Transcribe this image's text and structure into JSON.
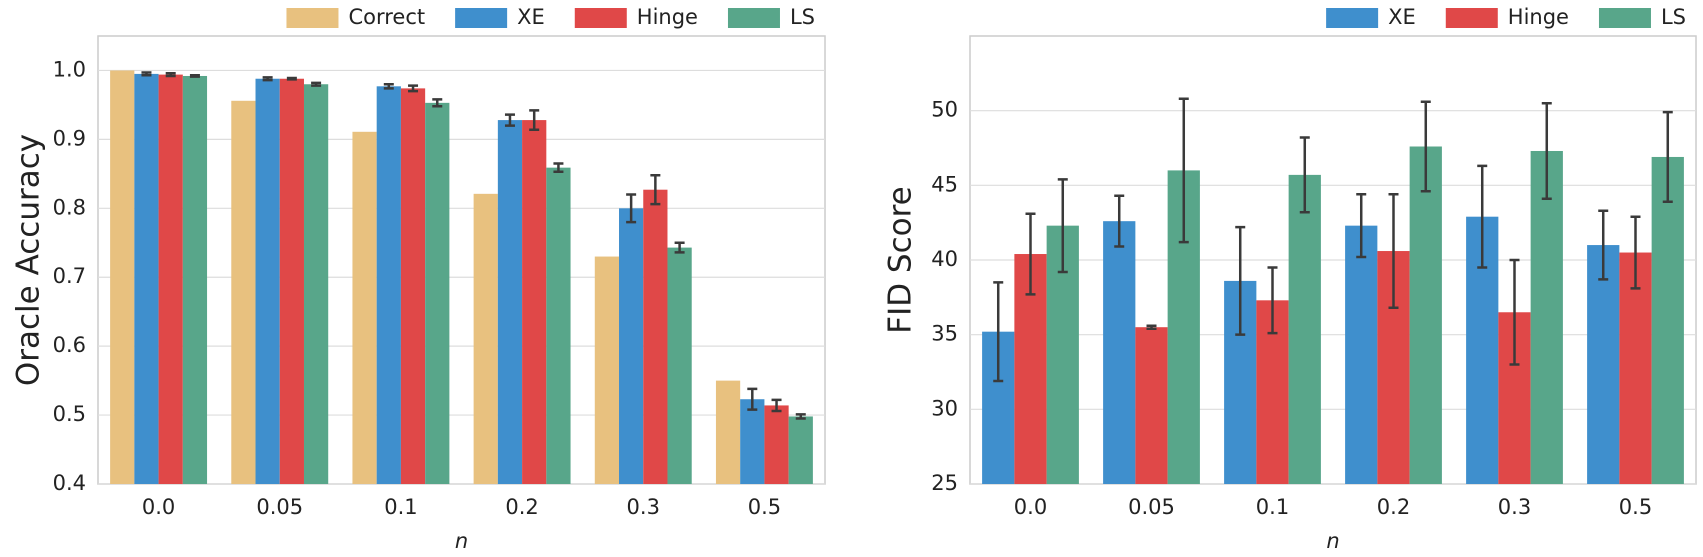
{
  "chart_data": [
    {
      "type": "bar",
      "ylabel": "Oracle Accuracy",
      "xlabel": "n",
      "categories": [
        "0.0",
        "0.05",
        "0.1",
        "0.2",
        "0.3",
        "0.5"
      ],
      "ylim": [
        0.4,
        1.05
      ],
      "yticks": [
        0.4,
        0.5,
        0.6,
        0.7,
        0.8,
        0.9,
        {
          "value": 1.0,
          "label": "1.0"
        }
      ],
      "grid": true,
      "legend": "above",
      "series": [
        {
          "name": "Correct",
          "color": "#e8c17f",
          "values": [
            1.0,
            0.956,
            0.911,
            0.821,
            0.73,
            0.55
          ]
        },
        {
          "name": "XE",
          "color": "#3f8fcd",
          "values": [
            0.995,
            0.988,
            0.977,
            0.928,
            0.8,
            0.523
          ],
          "errors": [
            0.002,
            0.002,
            0.003,
            0.008,
            0.02,
            0.015
          ]
        },
        {
          "name": "Hinge",
          "color": "#e04848",
          "values": [
            0.994,
            0.988,
            0.974,
            0.928,
            0.827,
            0.514
          ],
          "errors": [
            0.002,
            0.001,
            0.004,
            0.014,
            0.021,
            0.008
          ]
        },
        {
          "name": "LS",
          "color": "#58a68a",
          "values": [
            0.992,
            0.98,
            0.953,
            0.859,
            0.743,
            0.498
          ],
          "errors": [
            0.001,
            0.002,
            0.005,
            0.006,
            0.007,
            0.003
          ]
        }
      ]
    },
    {
      "type": "bar",
      "ylabel": "FID Score",
      "xlabel": "n",
      "categories": [
        "0.0",
        "0.05",
        "0.1",
        "0.2",
        "0.3",
        "0.5"
      ],
      "ylim": [
        25,
        55
      ],
      "yticks": [
        25,
        30,
        35,
        40,
        45,
        50
      ],
      "grid": true,
      "legend": "above",
      "series": [
        {
          "name": "XE",
          "color": "#3f8fcd",
          "values": [
            35.2,
            42.6,
            38.6,
            42.3,
            42.9,
            41.0
          ],
          "errors": [
            3.3,
            1.7,
            3.6,
            2.1,
            3.4,
            2.3
          ]
        },
        {
          "name": "Hinge",
          "color": "#e04848",
          "values": [
            40.4,
            35.5,
            37.3,
            40.6,
            36.5,
            40.5
          ],
          "errors": [
            2.7,
            0.1,
            2.2,
            3.8,
            3.5,
            2.4
          ]
        },
        {
          "name": "LS",
          "color": "#58a68a",
          "values": [
            42.3,
            46.0,
            45.7,
            47.6,
            47.3,
            46.9
          ],
          "errors": [
            3.1,
            4.8,
            2.5,
            3.0,
            3.2,
            3.0
          ]
        }
      ]
    }
  ]
}
